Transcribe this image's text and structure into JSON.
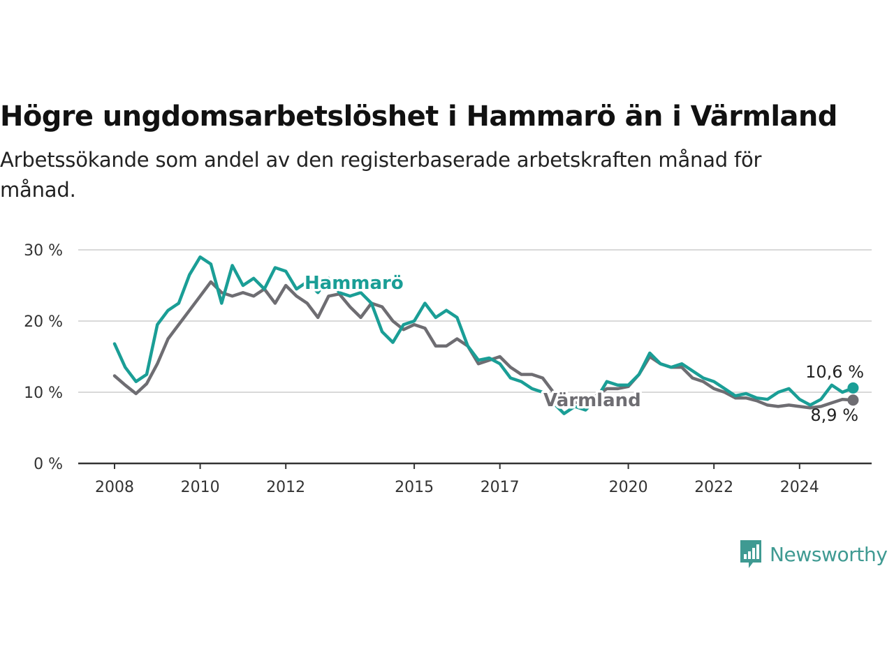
{
  "chart_data": {
    "type": "line",
    "title": "Högre ungdomsarbetslöshet i Hammarö än i Värmland",
    "subtitle": "Arbetssökande som andel av den registerbaserade arbetskraften månad för månad.",
    "xlabel": "",
    "ylabel": "",
    "x_ticks": [
      "2008",
      "2010",
      "2012",
      "2015",
      "2017",
      "2020",
      "2022",
      "2024"
    ],
    "y_ticks": [
      "0 %",
      "10 %",
      "20 %",
      "30 %"
    ],
    "ylim": [
      0,
      30
    ],
    "xlim": [
      "2008-01",
      "2025-12"
    ],
    "grid": true,
    "legend": "inline labels",
    "series": [
      {
        "name": "Hammarö",
        "color": "#1a9e96",
        "end_label": "10,6 %",
        "points": [
          [
            "2008-01",
            16.8
          ],
          [
            "2008-04",
            13.5
          ],
          [
            "2008-07",
            11.5
          ],
          [
            "2008-10",
            12.5
          ],
          [
            "2009-01",
            19.5
          ],
          [
            "2009-04",
            21.5
          ],
          [
            "2009-07",
            22.5
          ],
          [
            "2009-10",
            26.5
          ],
          [
            "2010-01",
            29.0
          ],
          [
            "2010-04",
            28.0
          ],
          [
            "2010-07",
            22.5
          ],
          [
            "2010-10",
            27.8
          ],
          [
            "2011-01",
            25.0
          ],
          [
            "2011-04",
            26.0
          ],
          [
            "2011-07",
            24.5
          ],
          [
            "2011-10",
            27.5
          ],
          [
            "2012-01",
            27.0
          ],
          [
            "2012-04",
            24.5
          ],
          [
            "2012-07",
            25.5
          ],
          [
            "2012-10",
            24.0
          ],
          [
            "2013-01",
            26.0
          ],
          [
            "2013-04",
            24.0
          ],
          [
            "2013-07",
            23.5
          ],
          [
            "2013-10",
            24.0
          ],
          [
            "2014-01",
            22.5
          ],
          [
            "2014-04",
            18.5
          ],
          [
            "2014-07",
            17.0
          ],
          [
            "2014-10",
            19.5
          ],
          [
            "2015-01",
            20.0
          ],
          [
            "2015-04",
            22.5
          ],
          [
            "2015-07",
            20.5
          ],
          [
            "2015-10",
            21.5
          ],
          [
            "2016-01",
            20.5
          ],
          [
            "2016-04",
            16.5
          ],
          [
            "2016-07",
            14.5
          ],
          [
            "2016-10",
            14.8
          ],
          [
            "2017-01",
            14.0
          ],
          [
            "2017-04",
            12.0
          ],
          [
            "2017-07",
            11.5
          ],
          [
            "2017-10",
            10.5
          ],
          [
            "2018-01",
            10.0
          ],
          [
            "2018-04",
            8.5
          ],
          [
            "2018-07",
            7.0
          ],
          [
            "2018-10",
            8.0
          ],
          [
            "2019-01",
            7.5
          ],
          [
            "2019-04",
            9.0
          ],
          [
            "2019-07",
            11.5
          ],
          [
            "2019-10",
            11.0
          ],
          [
            "2020-01",
            11.0
          ],
          [
            "2020-04",
            12.5
          ],
          [
            "2020-07",
            15.5
          ],
          [
            "2020-10",
            14.0
          ],
          [
            "2021-01",
            13.5
          ],
          [
            "2021-04",
            14.0
          ],
          [
            "2021-07",
            13.0
          ],
          [
            "2021-10",
            12.0
          ],
          [
            "2022-01",
            11.5
          ],
          [
            "2022-04",
            10.5
          ],
          [
            "2022-07",
            9.5
          ],
          [
            "2022-10",
            9.8
          ],
          [
            "2023-01",
            9.2
          ],
          [
            "2023-04",
            9.0
          ],
          [
            "2023-07",
            10.0
          ],
          [
            "2023-10",
            10.5
          ],
          [
            "2024-01",
            9.0
          ],
          [
            "2024-04",
            8.2
          ],
          [
            "2024-07",
            9.0
          ],
          [
            "2024-10",
            11.0
          ],
          [
            "2025-01",
            10.0
          ],
          [
            "2025-04",
            10.6
          ]
        ]
      },
      {
        "name": "Värmland",
        "color": "#6e6d72",
        "end_label": "8,9 %",
        "points": [
          [
            "2008-01",
            12.3
          ],
          [
            "2008-04",
            11.0
          ],
          [
            "2008-07",
            9.8
          ],
          [
            "2008-10",
            11.2
          ],
          [
            "2009-01",
            14.0
          ],
          [
            "2009-04",
            17.5
          ],
          [
            "2009-07",
            19.5
          ],
          [
            "2009-10",
            21.5
          ],
          [
            "2010-01",
            23.5
          ],
          [
            "2010-04",
            25.5
          ],
          [
            "2010-07",
            24.0
          ],
          [
            "2010-10",
            23.5
          ],
          [
            "2011-01",
            24.0
          ],
          [
            "2011-04",
            23.5
          ],
          [
            "2011-07",
            24.5
          ],
          [
            "2011-10",
            22.5
          ],
          [
            "2012-01",
            25.0
          ],
          [
            "2012-04",
            23.5
          ],
          [
            "2012-07",
            22.5
          ],
          [
            "2012-10",
            20.5
          ],
          [
            "2013-01",
            23.5
          ],
          [
            "2013-04",
            23.8
          ],
          [
            "2013-07",
            22.0
          ],
          [
            "2013-10",
            20.5
          ],
          [
            "2014-01",
            22.5
          ],
          [
            "2014-04",
            22.0
          ],
          [
            "2014-07",
            20.0
          ],
          [
            "2014-10",
            18.8
          ],
          [
            "2015-01",
            19.5
          ],
          [
            "2015-04",
            19.0
          ],
          [
            "2015-07",
            16.5
          ],
          [
            "2015-10",
            16.5
          ],
          [
            "2016-01",
            17.5
          ],
          [
            "2016-04",
            16.5
          ],
          [
            "2016-07",
            14.0
          ],
          [
            "2016-10",
            14.5
          ],
          [
            "2017-01",
            15.0
          ],
          [
            "2017-04",
            13.5
          ],
          [
            "2017-07",
            12.5
          ],
          [
            "2017-10",
            12.5
          ],
          [
            "2018-01",
            12.0
          ],
          [
            "2018-04",
            10.0
          ],
          [
            "2018-07",
            8.5
          ],
          [
            "2018-10",
            8.5
          ],
          [
            "2019-01",
            9.0
          ],
          [
            "2019-04",
            9.5
          ],
          [
            "2019-07",
            10.5
          ],
          [
            "2019-10",
            10.5
          ],
          [
            "2020-01",
            10.8
          ],
          [
            "2020-04",
            12.5
          ],
          [
            "2020-07",
            15.0
          ],
          [
            "2020-10",
            14.0
          ],
          [
            "2021-01",
            13.5
          ],
          [
            "2021-04",
            13.5
          ],
          [
            "2021-07",
            12.0
          ],
          [
            "2021-10",
            11.5
          ],
          [
            "2022-01",
            10.5
          ],
          [
            "2022-04",
            10.0
          ],
          [
            "2022-07",
            9.2
          ],
          [
            "2022-10",
            9.2
          ],
          [
            "2023-01",
            8.8
          ],
          [
            "2023-04",
            8.2
          ],
          [
            "2023-07",
            8.0
          ],
          [
            "2023-10",
            8.2
          ],
          [
            "2024-01",
            8.0
          ],
          [
            "2024-04",
            7.8
          ],
          [
            "2024-07",
            8.0
          ],
          [
            "2024-10",
            8.5
          ],
          [
            "2025-01",
            9.0
          ],
          [
            "2025-04",
            8.9
          ]
        ]
      }
    ]
  },
  "brand": {
    "name": "Newsworthy",
    "icon": "newsworthy-logo-icon",
    "color": "#3f9a92"
  }
}
